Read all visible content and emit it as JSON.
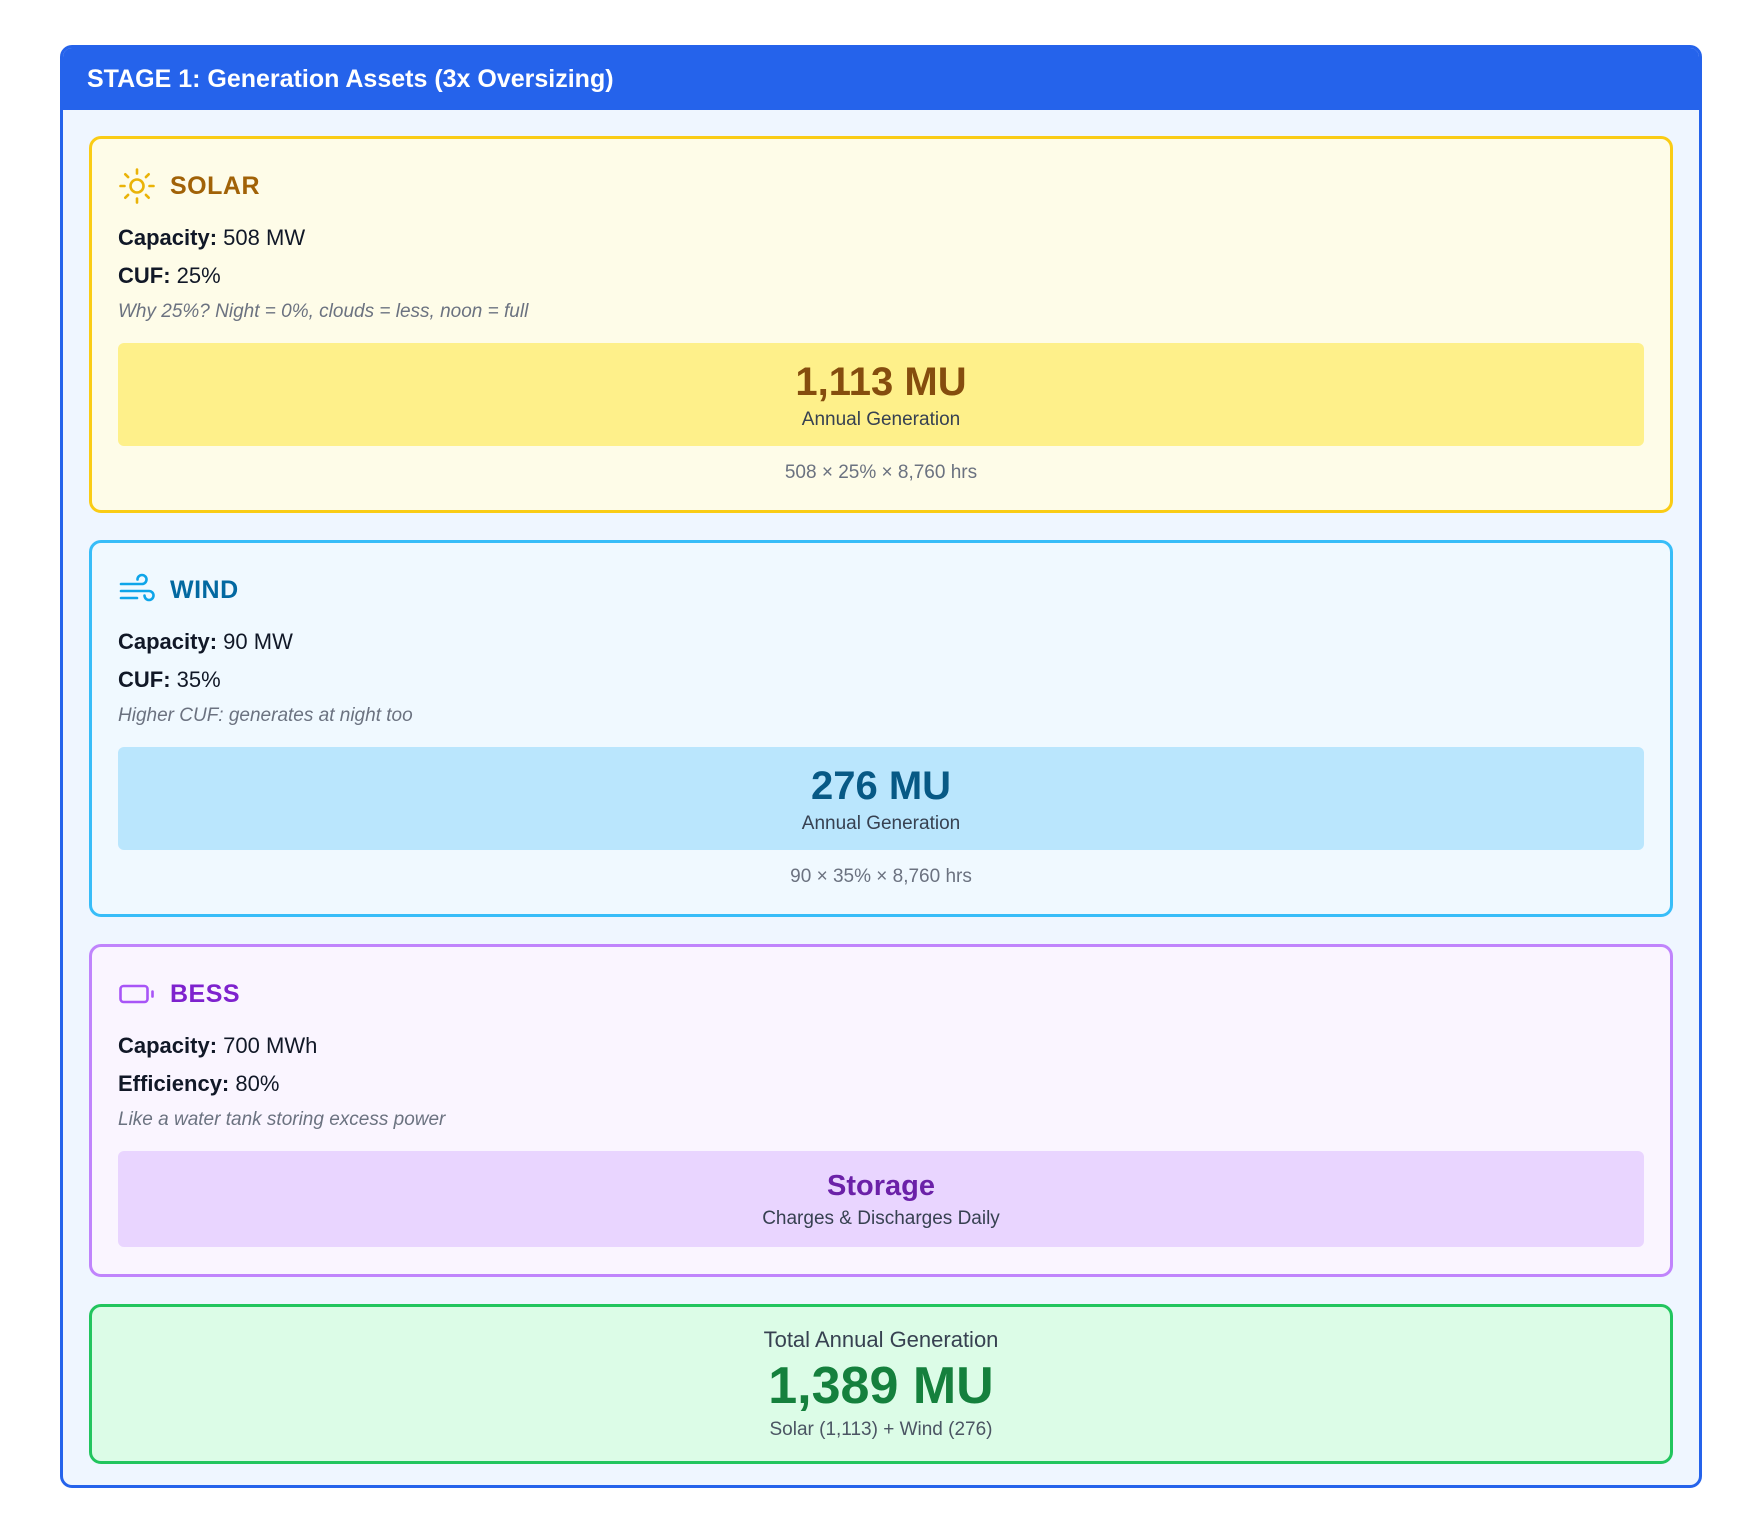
{
  "stage": {
    "title": "STAGE 1: Generation Assets (3x Oversizing)"
  },
  "colors": {
    "accent": "#2563eb",
    "solar": "#eab308",
    "wind": "#0ea5e9",
    "bess": "#a855f7",
    "total": "#22c55e"
  },
  "solar": {
    "icon": "sun-icon",
    "title": "SOLAR",
    "capacity_label": "Capacity:",
    "capacity_value": "508 MW",
    "cuf_label": "CUF:",
    "cuf_value": "25%",
    "note": "Why 25%? Night = 0%, clouds = less, noon = full",
    "result_value": "1,113 MU",
    "result_label": "Annual Generation",
    "formula": "508 × 25% × 8,760 hrs"
  },
  "wind": {
    "icon": "wind-icon",
    "title": "WIND",
    "capacity_label": "Capacity:",
    "capacity_value": "90 MW",
    "cuf_label": "CUF:",
    "cuf_value": "35%",
    "note": "Higher CUF: generates at night too",
    "result_value": "276 MU",
    "result_label": "Annual Generation",
    "formula": "90 × 35% × 8,760 hrs"
  },
  "bess": {
    "icon": "battery-icon",
    "title": "BESS",
    "capacity_label": "Capacity:",
    "capacity_value": "700 MWh",
    "efficiency_label": "Efficiency:",
    "efficiency_value": "80%",
    "note": "Like a water tank storing excess power",
    "result_value": "Storage",
    "result_label": "Charges & Discharges Daily"
  },
  "total": {
    "label": "Total Annual Generation",
    "value": "1,389 MU",
    "breakdown": "Solar (1,113) + Wind (276)"
  }
}
